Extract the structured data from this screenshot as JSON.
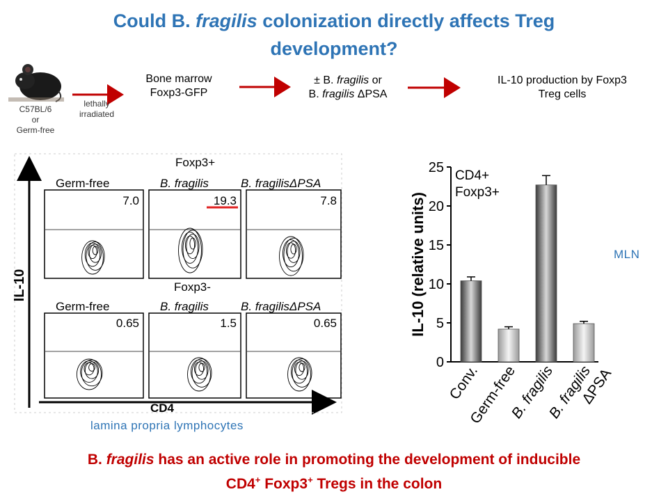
{
  "title": {
    "line1_pre": "Could B. ",
    "line1_ital": "fragilis",
    "line1_post": " colonization directly affects Treg",
    "line2": "development?"
  },
  "flow": {
    "mouse_label": [
      "C57BL/6",
      "or",
      "Germ-free"
    ],
    "irradiation_label": [
      "lethally",
      "irradiated"
    ],
    "step1": [
      "Bone marrow",
      "Foxp3-GFP"
    ],
    "step2_line1_pre": "± B. ",
    "step2_line1_ital": "fragilis",
    "step2_line1_post": " or",
    "step2_line2_pre": "B. ",
    "step2_line2_ital": "fragilis",
    "step2_line2_post": " ΔPSA",
    "step3": [
      "IL-10 production by Foxp3",
      "Treg cells"
    ]
  },
  "flow_panel": {
    "y_axis": "IL-10",
    "x_axis": "CD4",
    "rows": [
      {
        "label": "Foxp3+",
        "cols": [
          {
            "name": "Germ-free",
            "value": "7.0"
          },
          {
            "name": "B. fragilis",
            "value": "19.3"
          },
          {
            "name": "B. fragilisΔPSA",
            "value": "7.8"
          }
        ]
      },
      {
        "label": "Foxp3-",
        "cols": [
          {
            "name": "Germ-free",
            "value": "0.65"
          },
          {
            "name": "B. fragilis",
            "value": "1.5"
          },
          {
            "name": "B. fragilisΔPSA",
            "value": "0.65"
          }
        ]
      }
    ],
    "caption": "lamina propria lymphocytes"
  },
  "chart_data": {
    "type": "bar",
    "categories": [
      "Conv.",
      "Germ-free",
      "B. fragilis",
      "B. fragilis ΔPSA"
    ],
    "values": [
      10.4,
      4.2,
      22.7,
      4.9
    ],
    "errors": [
      0.5,
      0.3,
      1.2,
      0.3
    ],
    "annotation": [
      "CD4+",
      "Foxp3+"
    ],
    "ylabel": "IL-10 (relative units)",
    "ylim": [
      0,
      25
    ],
    "yticks": [
      0,
      5,
      10,
      15,
      20,
      25
    ],
    "side_label": "MLN"
  },
  "conclusion": {
    "line1_pre": "B. ",
    "line1_ital": "fragilis",
    "line1_post": " has an active role in promoting the development of inducible",
    "line2_a": "CD4",
    "line2_sup1": "+",
    "line2_b": " Foxp3",
    "line2_sup2": "+",
    "line2_c": " Tregs in the colon"
  },
  "colors": {
    "title": "#2e74b5",
    "accent_red": "#c00000",
    "arrow_red": "#c00000"
  }
}
